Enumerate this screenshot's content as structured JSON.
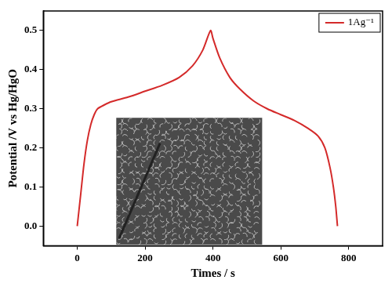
{
  "chart_data": {
    "type": "line",
    "x_label": "Times / s",
    "y_label": "Potential /V vs Hg/HgO",
    "x": [
      0,
      10,
      20,
      30,
      40,
      50,
      60,
      80,
      100,
      150,
      200,
      250,
      300,
      340,
      370,
      393,
      400,
      420,
      450,
      480,
      520,
      560,
      600,
      640,
      680,
      710,
      730,
      745,
      755,
      762,
      767
    ],
    "series": [
      {
        "name": "1Ag⁻¹",
        "color": "#d42a2a",
        "values": [
          0,
          0.08,
          0.16,
          0.22,
          0.26,
          0.285,
          0.3,
          0.31,
          0.318,
          0.33,
          0.345,
          0.36,
          0.38,
          0.41,
          0.45,
          0.5,
          0.48,
          0.43,
          0.38,
          0.35,
          0.32,
          0.3,
          0.285,
          0.27,
          0.25,
          0.23,
          0.2,
          0.15,
          0.1,
          0.05,
          0
        ]
      }
    ],
    "xlim": [
      -100,
      900
    ],
    "ylim": [
      -0.05,
      0.55
    ],
    "xticks": [
      0,
      200,
      400,
      600,
      800
    ],
    "yticks": [
      {
        "value": 0,
        "label": "0.0"
      },
      0.1,
      0.2,
      0.3,
      0.4,
      0.5
    ],
    "grid": false,
    "legend": "upper right"
  }
}
